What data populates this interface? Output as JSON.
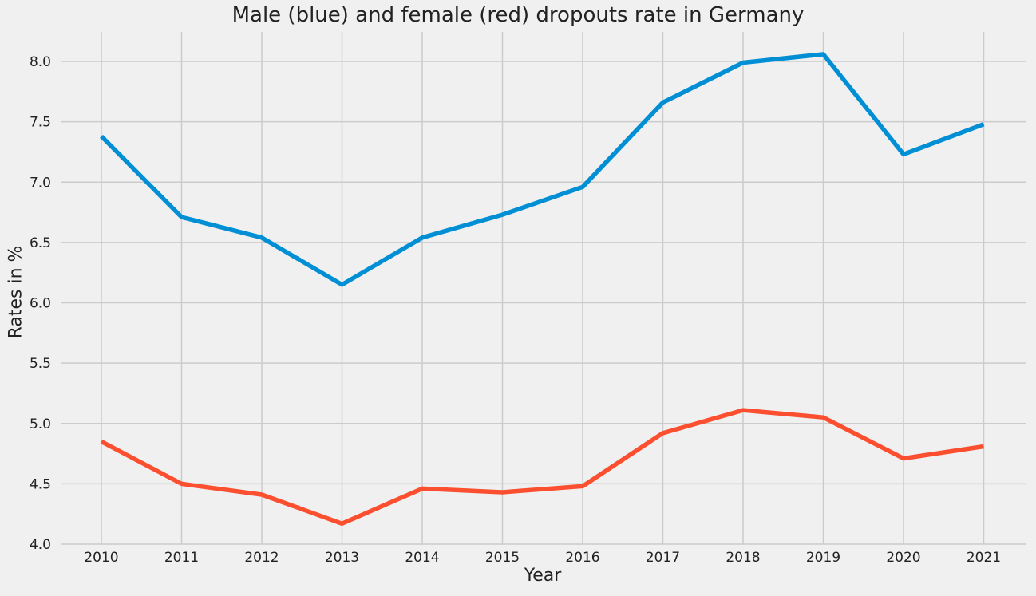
{
  "chart_data": {
    "type": "line",
    "title": "Male (blue) and female (red) dropouts rate in Germany",
    "xlabel": "Year",
    "ylabel": "Rates in %",
    "x": [
      2010,
      2011,
      2012,
      2013,
      2014,
      2015,
      2016,
      2017,
      2018,
      2019,
      2020,
      2021
    ],
    "ylim": [
      4.0,
      8.2
    ],
    "yticks": [
      "4.0",
      "4.5",
      "5.0",
      "5.5",
      "6.0",
      "6.5",
      "7.0",
      "7.5",
      "8.0"
    ],
    "grid": true,
    "series": [
      {
        "color": "#008fd5",
        "values": [
          7.38,
          6.71,
          6.54,
          6.15,
          6.54,
          6.73,
          6.96,
          7.66,
          7.99,
          8.06,
          7.23,
          7.48
        ]
      },
      {
        "color": "#fc4f30",
        "values": [
          4.85,
          4.5,
          4.41,
          4.17,
          4.46,
          4.43,
          4.48,
          4.92,
          5.11,
          5.05,
          4.71,
          4.81
        ]
      }
    ]
  }
}
